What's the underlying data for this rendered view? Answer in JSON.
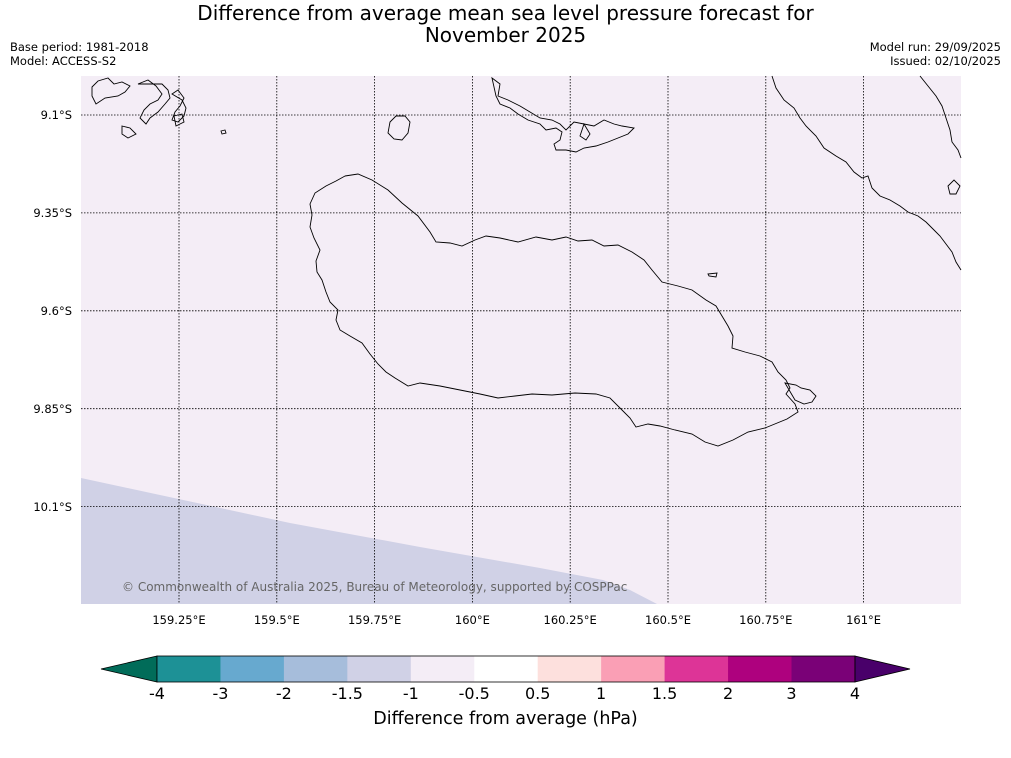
{
  "title": {
    "line1": "Difference from average mean sea level pressure forecast for",
    "line2": "November 2025"
  },
  "meta": {
    "base_period": "Base period: 1981-2018",
    "model": "Model: ACCESS-S2",
    "model_run": "Model run: 29/09/2025",
    "issued": "Issued: 02/10/2025"
  },
  "map": {
    "lat_labels": [
      "9.1°S",
      "9.35°S",
      "9.6°S",
      "9.85°S",
      "10.1°S"
    ],
    "lon_labels": [
      "159.25°E",
      "159.5°E",
      "159.75°E",
      "160°E",
      "160.25°E",
      "160.5°E",
      "160.75°E",
      "161°E"
    ],
    "background_color": "#f4edf6",
    "anomaly_color": "#d0d1e6",
    "copyright": "© Commonwealth of Australia 2025, Bureau of Meteorology, supported by COSPPac"
  },
  "colorbar": {
    "title": "Difference from average (hPa)",
    "labels": [
      "-4",
      "-3",
      "-2",
      "-1.5",
      "-1",
      "-0.5",
      "0.5",
      "1",
      "1.5",
      "2",
      "3",
      "4"
    ],
    "colors": [
      "#1d9196",
      "#67a9cf",
      "#a6bddb",
      "#d0d1e6",
      "#f4edf6",
      "#ffffff",
      "#fde0dd",
      "#fa9fb5",
      "#dd3497",
      "#ae017e",
      "#7a0177"
    ],
    "low_extension_color": "#016c59",
    "high_extension_color": "#49006a"
  }
}
